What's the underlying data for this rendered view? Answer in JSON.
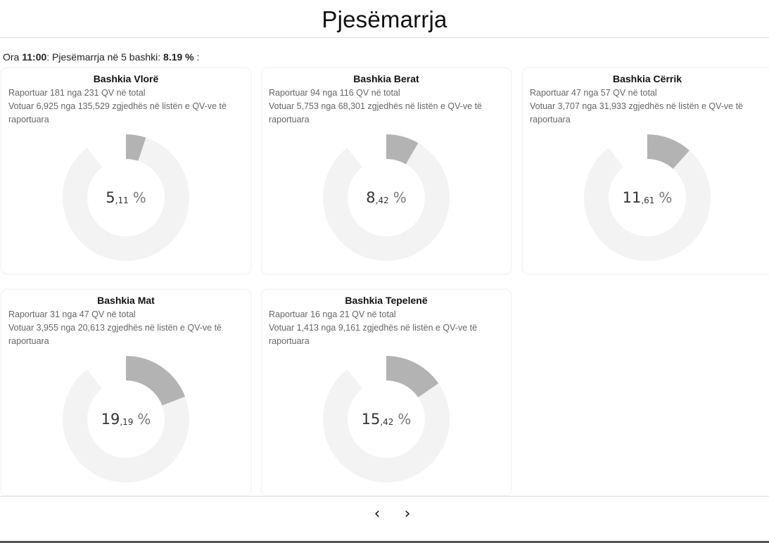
{
  "header": {
    "title": "Pjesëmarrja"
  },
  "summary": {
    "prefix": "Ora ",
    "time": "11:00",
    "middle": ": Pjesëmarrja në 5 bashki: ",
    "total_pct": "8.19 %",
    "suffix": " :"
  },
  "cards": [
    {
      "title": "Bashkia Vlorë",
      "reported": "Raportuar 181 nga 231 QV në total",
      "voted": "Votuar 6,925 nga 135,529 zgjedhës në listën e QV-ve të raportuara",
      "pct_int": "5",
      "pct_dec": ",11",
      "pct_sign": "%",
      "value": 5.11
    },
    {
      "title": "Bashkia Berat",
      "reported": "Raportuar 94 nga 116 QV në total",
      "voted": "Votuar 5,753 nga 68,301 zgjedhës në listën e QV-ve të raportuara",
      "pct_int": "8",
      "pct_dec": ",42",
      "pct_sign": "%",
      "value": 8.42
    },
    {
      "title": "Bashkia Cërrik",
      "reported": "Raportuar 47 nga 57 QV në total",
      "voted": "Votuar 3,707 nga 31,933 zgjedhës në listën e QV-ve të raportuara",
      "pct_int": "11",
      "pct_dec": ",61",
      "pct_sign": "%",
      "value": 11.61
    },
    {
      "title": "Bashkia Mat",
      "reported": "Raportuar 31 nga 47 QV në total",
      "voted": "Votuar 3,955 nga 20,613 zgjedhës në listën e QV-ve të raportuara",
      "pct_int": "19",
      "pct_dec": ",19",
      "pct_sign": "%",
      "value": 19.19
    },
    {
      "title": "Bashkia Tepelenë",
      "reported": "Raportuar 16 nga 21 QV në total",
      "voted": "Votuar 1,413 nga 9,161 zgjedhës në listën e QV-ve të raportuara",
      "pct_int": "15",
      "pct_dec": ",42",
      "pct_sign": "%",
      "value": 15.42
    }
  ],
  "colors": {
    "filled": "#b3b3b3",
    "track": "#f3f3f3"
  },
  "pagination": {
    "prev_label": "‹",
    "next_label": "›",
    "prev_icon": "chevron-left-icon",
    "next_icon": "chevron-right-icon"
  }
}
